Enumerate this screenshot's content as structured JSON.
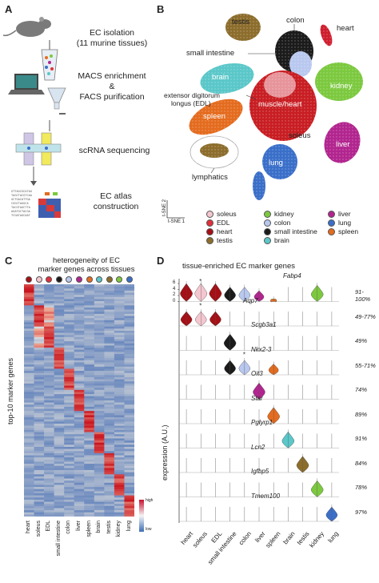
{
  "panel_a": {
    "letter": "A",
    "steps": [
      {
        "text_lines": [
          "EC isolation",
          "(11 murine tissues)"
        ]
      },
      {
        "text_lines": [
          "MACS enrichment",
          "&",
          "FACS purification"
        ]
      },
      {
        "text_lines": [
          "scRNA sequencing"
        ]
      },
      {
        "text_lines": [
          "EC atlas",
          "construction"
        ]
      }
    ]
  },
  "panel_b": {
    "letter": "B",
    "cluster_labels": [
      "testis",
      "colon",
      "heart",
      "small intestine",
      "brain",
      "kidney",
      "extensor digitorum",
      "longus (EDL)",
      "muscle/heart",
      "spleen",
      "soleus",
      "liver",
      "lung",
      "lymphatics"
    ],
    "axis1": "t-SNE 1",
    "axis2": "t-SNE 2",
    "legend": [
      {
        "name": "soleus",
        "color": "#f4c6cf"
      },
      {
        "name": "EDL",
        "color": "#e0303a"
      },
      {
        "name": "heart",
        "color": "#a50f15"
      },
      {
        "name": "testis",
        "color": "#8c6d2c"
      },
      {
        "name": "kidney",
        "color": "#7cc93f"
      },
      {
        "name": "colon",
        "color": "#b9c8ef"
      },
      {
        "name": "small intestine",
        "color": "#1b1b1b"
      },
      {
        "name": "brain",
        "color": "#5bc7c9"
      },
      {
        "name": "liver",
        "color": "#b2258f"
      },
      {
        "name": "lung",
        "color": "#3a6fc9"
      },
      {
        "name": "spleen",
        "color": "#e46c1f"
      }
    ],
    "cluster_colors": {
      "testis": "#8c6d2c",
      "colon": "#1b1b1b",
      "heart": "#cf1f2e",
      "brain": "#5bc7c9",
      "kidney": "#7cc93f",
      "muscle": "#c81e23",
      "spleen": "#e46c1f",
      "liver": "#b2258f",
      "lung": "#3a6fc9",
      "lymph": "#8c6d2c",
      "colon_light": "#b9c8ef"
    }
  },
  "panel_c": {
    "letter": "C",
    "title_lines": [
      "heterogeneity of EC",
      "marker genes across tissues"
    ],
    "ylabel": "top-10 marker genes",
    "xlabels": [
      "heart",
      "soleus",
      "EDL",
      "small intestine",
      "colon",
      "liver",
      "spleen",
      "brain",
      "testis",
      "kidney",
      "lung"
    ],
    "top_dot_colors": [
      "#a50f15",
      "#f4c6cf",
      "#e0303a",
      "#1b1b1b",
      "#b9c8ef",
      "#b2258f",
      "#e46c1f",
      "#5bc7c9",
      "#8c6d2c",
      "#7cc93f",
      "#3a6fc9"
    ],
    "scale_high": "high",
    "scale_low": "low"
  },
  "panel_d": {
    "letter": "D",
    "title": "tissue-enriched EC marker genes",
    "ylabel": "expression (A.U.)",
    "xlabels": [
      "heart",
      "soleus",
      "EDL",
      "small intestine",
      "colon",
      "liver",
      "spleen",
      "brain",
      "testis",
      "kidney",
      "lung"
    ],
    "tissue_colors": [
      "#a50f15",
      "#f4c6cf",
      "#a50f15",
      "#1b1b1b",
      "#b9c8ef",
      "#b2258f",
      "#e46c1f",
      "#5bc7c9",
      "#8c6d2c",
      "#7cc93f",
      "#3a6fc9"
    ],
    "ticks": [
      "0",
      "2",
      "4",
      "6"
    ],
    "rows": [
      {
        "gene": "Fabp4",
        "pct": "91-100%",
        "heights": [
          1,
          1,
          1,
          0.8,
          0.8,
          0.6,
          0.15,
          0.05,
          0.05,
          0.9,
          0.05
        ],
        "star": 1
      },
      {
        "gene": "Aqp7",
        "pct": "49-77%",
        "heights": [
          0.8,
          0.8,
          0.8,
          0.05,
          0.05,
          0.05,
          0.05,
          0.05,
          0.05,
          0.05,
          0.05
        ],
        "star": 1
      },
      {
        "gene": "Scgb3a1",
        "pct": "49%",
        "heights": [
          0.05,
          0.05,
          0.05,
          0.9,
          0.05,
          0.05,
          0.05,
          0.05,
          0.05,
          0.05,
          0.05
        ],
        "star": -1
      },
      {
        "gene": "Nkx2-3",
        "pct": "55-71%",
        "heights": [
          0.05,
          0.05,
          0.05,
          0.8,
          0.8,
          0.05,
          0.6,
          0.05,
          0.05,
          0.05,
          0.05
        ],
        "star": 4
      },
      {
        "gene": "Oit3",
        "pct": "74%",
        "heights": [
          0.05,
          0.05,
          0.05,
          0.05,
          0.05,
          0.9,
          0.05,
          0.05,
          0.05,
          0.05,
          0.05
        ],
        "star": -1
      },
      {
        "gene": "Star",
        "pct": "89%",
        "heights": [
          0.05,
          0.05,
          0.05,
          0.05,
          0.05,
          0.05,
          0.9,
          0.05,
          0.05,
          0.05,
          0.05
        ],
        "star": -1
      },
      {
        "gene": "Pglyrp1",
        "pct": "91%",
        "heights": [
          0.05,
          0.05,
          0.05,
          0.05,
          0.05,
          0.05,
          0.05,
          0.9,
          0.05,
          0.05,
          0.05
        ],
        "star": -1
      },
      {
        "gene": "Lcn2",
        "pct": "84%",
        "heights": [
          0.05,
          0.05,
          0.05,
          0.05,
          0.05,
          0.05,
          0.05,
          0.05,
          0.9,
          0.05,
          0.05
        ],
        "star": -1
      },
      {
        "gene": "Igfbp5",
        "pct": "78%",
        "heights": [
          0.05,
          0.05,
          0.05,
          0.05,
          0.05,
          0.05,
          0.05,
          0.05,
          0.05,
          0.9,
          0.05
        ],
        "star": -1
      },
      {
        "gene": "Tmem100",
        "pct": "97%",
        "heights": [
          0.05,
          0.05,
          0.05,
          0.05,
          0.05,
          0.05,
          0.05,
          0.05,
          0.05,
          0.05,
          0.8
        ],
        "star": -1
      }
    ]
  }
}
